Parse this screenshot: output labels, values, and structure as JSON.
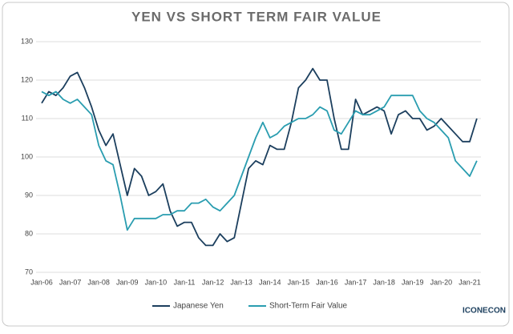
{
  "chart_data": {
    "type": "line",
    "title": "YEN VS SHORT TERM FAIR VALUE",
    "logo": "ICONECON",
    "categories": [
      "Jan-06",
      null,
      null,
      null,
      "Jan-07",
      null,
      null,
      null,
      "Jan-08",
      null,
      null,
      null,
      "Jan-09",
      null,
      null,
      null,
      "Jan-10",
      null,
      null,
      null,
      "Jan-11",
      null,
      null,
      null,
      "Jan-12",
      null,
      null,
      null,
      "Jan-13",
      null,
      null,
      null,
      "Jan-14",
      null,
      null,
      null,
      "Jan-15",
      null,
      null,
      null,
      "Jan-16",
      null,
      null,
      null,
      "Jan-17",
      null,
      null,
      null,
      "Jan-18",
      null,
      null,
      null,
      "Jan-19",
      null,
      null,
      null,
      "Jan-20",
      null,
      null,
      null,
      "Jan-21",
      null
    ],
    "series": [
      {
        "name": "Japanese Yen",
        "color": "#1c3f5e",
        "values": [
          114,
          117,
          116,
          118,
          121,
          122,
          118,
          113,
          107,
          103,
          106,
          98,
          90,
          97,
          95,
          90,
          91,
          93,
          86,
          82,
          83,
          83,
          79,
          77,
          77,
          80,
          78,
          79,
          88,
          97,
          99,
          98,
          103,
          102,
          102,
          109,
          118,
          120,
          123,
          120,
          120,
          110,
          102,
          102,
          115,
          111,
          112,
          113,
          112,
          106,
          111,
          112,
          110,
          110,
          107,
          108,
          110,
          108,
          106,
          104,
          104,
          110
        ]
      },
      {
        "name": "Short-Term Fair Value",
        "color": "#2a9db0",
        "values": [
          117,
          116,
          117,
          115,
          114,
          115,
          113,
          111,
          103,
          99,
          98,
          90,
          81,
          84,
          84,
          84,
          84,
          85,
          85,
          86,
          86,
          88,
          88,
          89,
          87,
          86,
          88,
          90,
          95,
          100,
          105,
          109,
          105,
          106,
          108,
          109,
          110,
          110,
          111,
          113,
          112,
          107,
          106,
          109,
          112,
          111,
          111,
          112,
          113,
          116,
          116,
          116,
          116,
          112,
          110,
          109,
          107,
          105,
          99,
          97,
          95,
          99
        ]
      }
    ],
    "ylim": [
      70,
      130
    ],
    "yticks": [
      70,
      80,
      90,
      100,
      110,
      120,
      130
    ],
    "grid": true
  }
}
